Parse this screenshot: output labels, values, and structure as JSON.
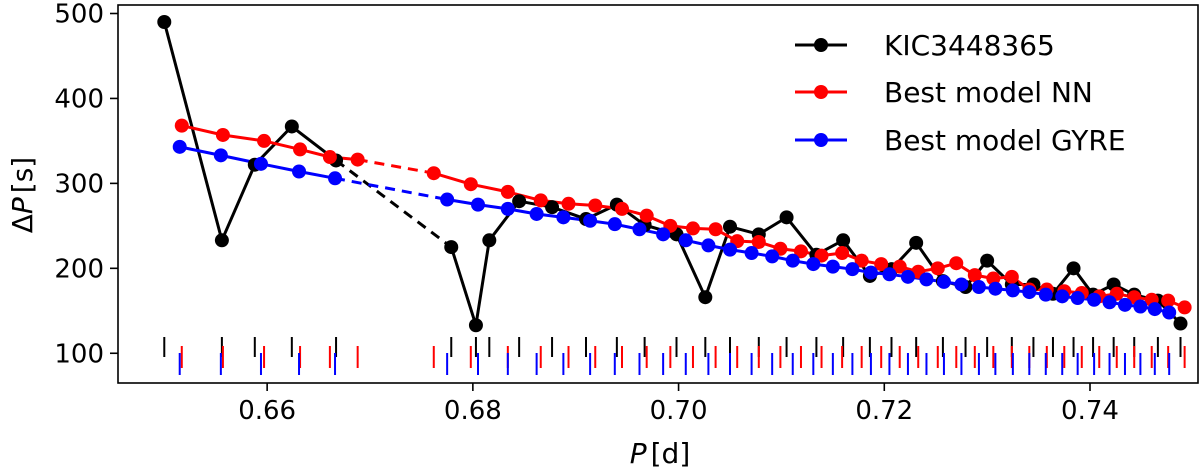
{
  "chart_data": {
    "type": "line",
    "xlabel_var": "P",
    "xlabel_unit": "[d]",
    "ylabel_prefix": "Δ",
    "ylabel_var": "P",
    "ylabel_unit": "[s]",
    "xlim": [
      0.6455,
      0.7505
    ],
    "ylim": [
      65,
      510
    ],
    "xticks": [
      0.66,
      0.68,
      0.7,
      0.72,
      0.74
    ],
    "xtick_labels": [
      "0.66",
      "0.68",
      "0.70",
      "0.72",
      "0.74"
    ],
    "yticks": [
      100,
      200,
      300,
      400,
      500
    ],
    "ytick_labels": [
      "100",
      "200",
      "300",
      "400",
      "500"
    ],
    "legend_position": "upper-right",
    "series": [
      {
        "name": "KIC3448365",
        "color": "#000000",
        "segments": [
          {
            "style": "solid",
            "x": [
              0.65,
              0.6556,
              0.6588,
              0.6624,
              0.6667
            ],
            "y": [
              490,
              233,
              322,
              367,
              327
            ]
          },
          {
            "style": "dashed",
            "x": [
              0.6667,
              0.6779
            ],
            "y": [
              327,
              225
            ]
          },
          {
            "style": "solid",
            "x": [
              0.6779,
              0.6803,
              0.6816,
              0.6845,
              0.6877,
              0.691,
              0.694,
              0.6967,
              0.6998,
              0.7026,
              0.705,
              0.7078,
              0.7105,
              0.7134,
              0.716,
              0.7186,
              0.7207,
              0.7231,
              0.7257,
              0.7279,
              0.73,
              0.7324,
              0.7345,
              0.7364,
              0.7384,
              0.7403,
              0.7423,
              0.7443,
              0.7466,
              0.7488
            ],
            "y": [
              225,
              133,
              233,
              279,
              272,
              258,
              275,
              251,
              240,
              166,
              249,
              240,
              260,
              216,
              233,
              191,
              199,
              230,
              185,
              178,
              209,
              181,
              181,
              170,
              200,
              169,
              181,
              169,
              162,
              135
            ]
          }
        ]
      },
      {
        "name": "Best model NN",
        "color": "#ff0000",
        "segments": [
          {
            "style": "solid",
            "x": [
              0.6517,
              0.6557,
              0.6597,
              0.6632,
              0.6661,
              0.6688
            ],
            "y": [
              368,
              357,
              350,
              340,
              331,
              328
            ]
          },
          {
            "style": "dashed",
            "x": [
              0.6688,
              0.6762
            ],
            "y": [
              328,
              312
            ]
          },
          {
            "style": "solid",
            "x": [
              0.6762,
              0.6798,
              0.6834,
              0.6866,
              0.6893,
              0.6919,
              0.6945,
              0.6969,
              0.6992,
              0.7014,
              0.7036,
              0.7057,
              0.7078,
              0.7099,
              0.7119,
              0.7139,
              0.7159,
              0.7178,
              0.7197,
              0.7215,
              0.7233,
              0.7252,
              0.727,
              0.7288,
              0.7306,
              0.7324,
              0.7341,
              0.7358,
              0.7375,
              0.7392,
              0.7409,
              0.7426,
              0.7443,
              0.746,
              0.7476,
              0.7492
            ],
            "y": [
              312,
              299,
              290,
              280,
              276,
              274,
              270,
              262,
              250,
              247,
              246,
              232,
              231,
              223,
              220,
              215,
              218,
              209,
              205,
              202,
              196,
              200,
              206,
              192,
              188,
              190,
              175,
              175,
              173,
              171,
              167,
              170,
              166,
              163,
              162,
              154
            ]
          }
        ]
      },
      {
        "name": "Best model GYRE",
        "color": "#0000ff",
        "segments": [
          {
            "style": "solid",
            "x": [
              0.6515,
              0.6555,
              0.6594,
              0.6631,
              0.6666
            ],
            "y": [
              343,
              333,
              323,
              314,
              306
            ]
          },
          {
            "style": "dashed",
            "x": [
              0.6666,
              0.6775
            ],
            "y": [
              306,
              281
            ]
          },
          {
            "style": "solid",
            "x": [
              0.6775,
              0.6805,
              0.6834,
              0.6862,
              0.6888,
              0.6914,
              0.6938,
              0.6962,
              0.6985,
              0.7007,
              0.7029,
              0.705,
              0.7071,
              0.7091,
              0.7111,
              0.7131,
              0.715,
              0.7169,
              0.7187,
              0.7205,
              0.7223,
              0.7241,
              0.7258,
              0.7275,
              0.7292,
              0.7308,
              0.7325,
              0.7341,
              0.7357,
              0.7373,
              0.7388,
              0.7404,
              0.7419,
              0.7434,
              0.7449,
              0.7463,
              0.7477
            ],
            "y": [
              281,
              275,
              270,
              264,
              260,
              256,
              252,
              246,
              240,
              233,
              227,
              222,
              218,
              214,
              209,
              205,
              202,
              199,
              195,
              193,
              190,
              187,
              184,
              181,
              178,
              176,
              174,
              172,
              169,
              167,
              165,
              163,
              160,
              157,
              155,
              152,
              148
            ]
          }
        ]
      }
    ]
  }
}
